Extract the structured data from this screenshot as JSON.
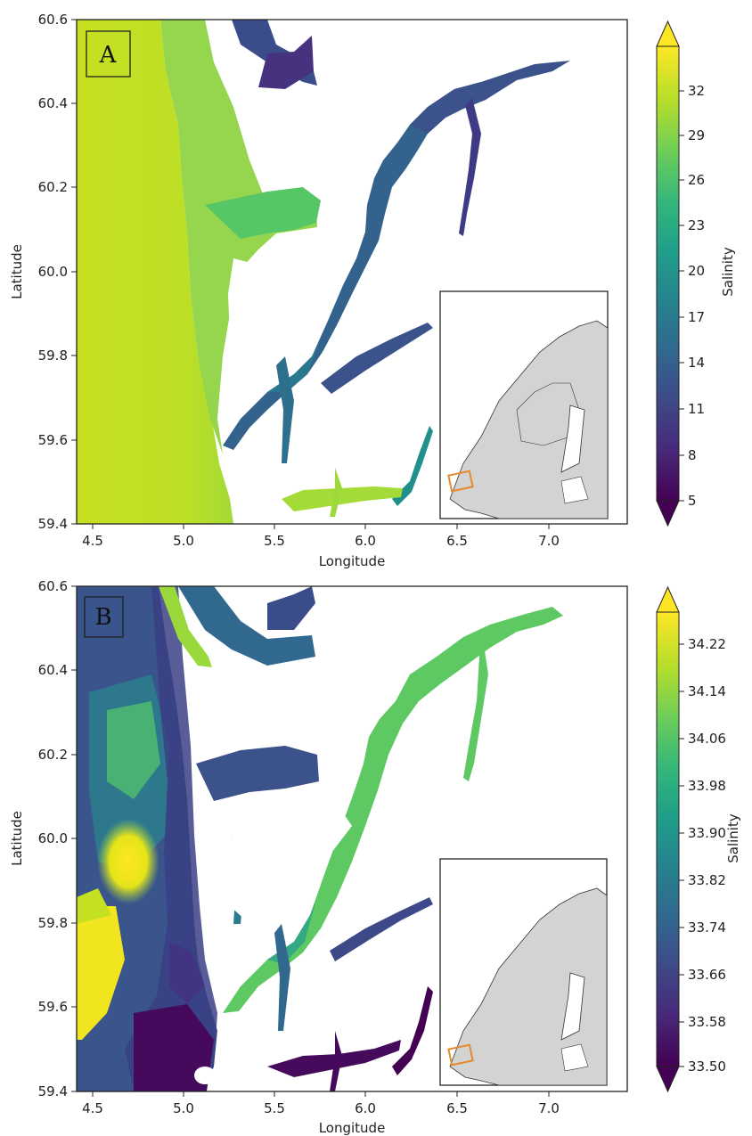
{
  "colormap": {
    "name": "viridis",
    "stops": [
      "#440154",
      "#482878",
      "#3e4989",
      "#31688e",
      "#26828e",
      "#1f9e89",
      "#35b779",
      "#6ece58",
      "#b5de2b",
      "#fde725"
    ]
  },
  "colors": {
    "land": "#ffffff",
    "inset_land": "#d3d3d3",
    "inset_box": "#e6892a"
  },
  "panels": [
    {
      "label": "A",
      "xlabel": "Longitude",
      "ylabel": "Latitude",
      "xticks": [
        "4.5",
        "5.0",
        "5.5",
        "6.0",
        "6.5",
        "7.0"
      ],
      "yticks": [
        "60.6",
        "60.4",
        "60.2",
        "60.0",
        "59.8",
        "59.6",
        "59.4"
      ],
      "colorbar": {
        "label": "Salinity",
        "ticks": [
          "32",
          "29",
          "26",
          "23",
          "20",
          "17",
          "14",
          "11",
          "8",
          "5"
        ],
        "extend": "both"
      }
    },
    {
      "label": "B",
      "xlabel": "Longitude",
      "ylabel": "Latitude",
      "xticks": [
        "4.5",
        "5.0",
        "5.5",
        "6.0",
        "6.5",
        "7.0"
      ],
      "yticks": [
        "60.6",
        "60.4",
        "60.2",
        "60.0",
        "59.8",
        "59.6",
        "59.4"
      ],
      "colorbar": {
        "label": "Salinity",
        "ticks": [
          "34.22",
          "34.14",
          "34.06",
          "33.98",
          "33.90",
          "33.82",
          "33.74",
          "33.66",
          "33.58",
          "33.50"
        ],
        "extend": "both"
      }
    }
  ]
}
